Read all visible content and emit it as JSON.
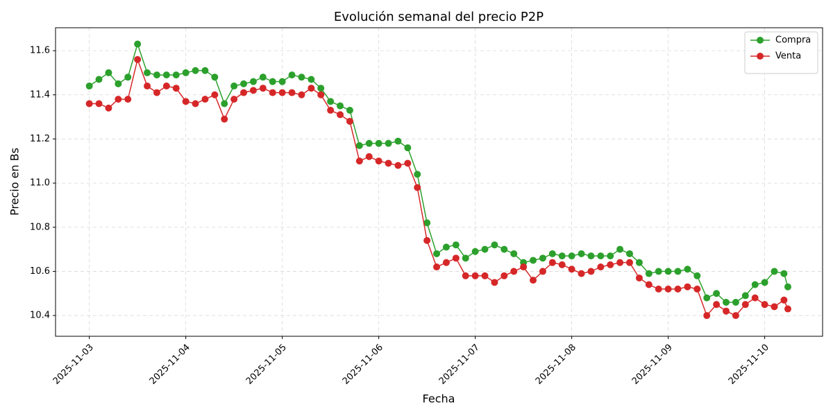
{
  "chart_data": {
    "type": "line",
    "title": "Evolución semanal del precio P2P",
    "x_label": "Fecha",
    "y_label": "Precio en Bs",
    "x": [
      0,
      0.1,
      0.2,
      0.3,
      0.4,
      0.5,
      0.6,
      0.7,
      0.8,
      0.9,
      1,
      1.1,
      1.2,
      1.3,
      1.4,
      1.5,
      1.6,
      1.7,
      1.8,
      1.9,
      2,
      2.1,
      2.2,
      2.3,
      2.4,
      2.5,
      2.6,
      2.7,
      2.8,
      2.9,
      3,
      3.1,
      3.2,
      3.3,
      3.4,
      3.5,
      3.6,
      3.7,
      3.8,
      3.9,
      4,
      4.1,
      4.2,
      4.3,
      4.4,
      4.5,
      4.6,
      4.7,
      4.8,
      4.9,
      5,
      5.1,
      5.2,
      5.3,
      5.4,
      5.5,
      5.6,
      5.7,
      5.8,
      5.9,
      6,
      6.1,
      6.2,
      6.3,
      6.4,
      6.5,
      6.6,
      6.7,
      6.8,
      6.9,
      7,
      7.1,
      7.2,
      7.24
    ],
    "series": [
      {
        "name": "Compra",
        "color": "#2ca02c",
        "values": [
          11.44,
          11.47,
          11.5,
          11.45,
          11.48,
          11.63,
          11.5,
          11.49,
          11.49,
          11.49,
          11.5,
          11.51,
          11.51,
          11.48,
          11.36,
          11.44,
          11.45,
          11.46,
          11.48,
          11.46,
          11.46,
          11.49,
          11.48,
          11.47,
          11.43,
          11.37,
          11.35,
          11.33,
          11.17,
          11.18,
          11.18,
          11.18,
          11.19,
          11.16,
          11.04,
          10.82,
          10.68,
          10.71,
          10.72,
          10.66,
          10.69,
          10.7,
          10.72,
          10.7,
          10.68,
          10.64,
          10.65,
          10.66,
          10.68,
          10.67,
          10.67,
          10.68,
          10.67,
          10.67,
          10.67,
          10.7,
          10.68,
          10.64,
          10.59,
          10.6,
          10.6,
          10.6,
          10.61,
          10.58,
          10.48,
          10.5,
          10.46,
          10.46,
          10.49,
          10.54,
          10.55,
          10.6,
          10.59,
          10.53
        ]
      },
      {
        "name": "Venta",
        "color": "#d62728",
        "values": [
          11.36,
          11.36,
          11.34,
          11.38,
          11.38,
          11.56,
          11.44,
          11.41,
          11.44,
          11.43,
          11.37,
          11.36,
          11.38,
          11.4,
          11.29,
          11.38,
          11.41,
          11.42,
          11.43,
          11.41,
          11.41,
          11.41,
          11.4,
          11.43,
          11.4,
          11.33,
          11.31,
          11.28,
          11.1,
          11.12,
          11.1,
          11.09,
          11.08,
          11.09,
          10.98,
          10.74,
          10.62,
          10.64,
          10.66,
          10.58,
          10.58,
          10.58,
          10.55,
          10.58,
          10.6,
          10.62,
          10.56,
          10.6,
          10.64,
          10.63,
          10.61,
          10.59,
          10.6,
          10.62,
          10.63,
          10.64,
          10.64,
          10.57,
          10.54,
          10.52,
          10.52,
          10.52,
          10.53,
          10.52,
          10.4,
          10.45,
          10.42,
          10.4,
          10.45,
          10.48,
          10.45,
          10.44,
          10.47,
          10.43
        ]
      }
    ],
    "xlim": [
      -0.35,
      7.6
    ],
    "xticks": [
      {
        "value": 0,
        "label": "2025-11-03"
      },
      {
        "value": 1,
        "label": "2025-11-04"
      },
      {
        "value": 2,
        "label": "2025-11-05"
      },
      {
        "value": 3,
        "label": "2025-11-06"
      },
      {
        "value": 4,
        "label": "2025-11-07"
      },
      {
        "value": 5,
        "label": "2025-11-08"
      },
      {
        "value": 6,
        "label": "2025-11-09"
      },
      {
        "value": 7,
        "label": "2025-11-10"
      }
    ],
    "ylim": [
      10.306,
      11.704
    ],
    "yticks": [
      10.4,
      10.6,
      10.8,
      {
        "value": 11,
        "label": "11.0"
      },
      11.2,
      11.4,
      11.6
    ],
    "grid": true,
    "legend": "upper right",
    "markers": true
  }
}
